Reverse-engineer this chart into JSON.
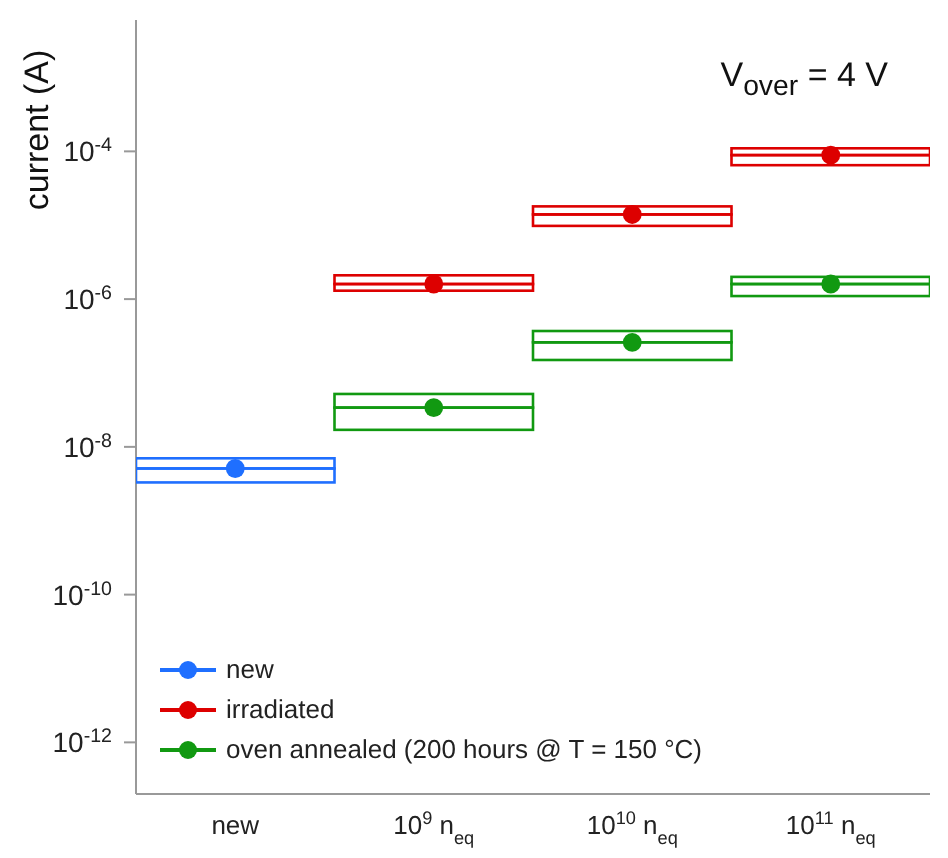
{
  "chart_data": {
    "type": "scatter",
    "ylabel": "current (A)",
    "annotations": [
      "V$_{over}$ = 4 V"
    ],
    "categories": [
      "new",
      "10$^{9}$ n$_{eq}$",
      "10$^{10}$ n$_{eq}$",
      "10$^{11}$ n$_{eq}$"
    ],
    "log": "y",
    "ylim": [
      2e-13,
      0.006
    ],
    "yticks": [
      {
        "value": 1e-12,
        "label": "10$^{-12}$"
      },
      {
        "value": 1e-10,
        "label": "10$^{-10}$"
      },
      {
        "value": 1e-08,
        "label": "10$^{-8}$"
      },
      {
        "value": 1e-06,
        "label": "10$^{-6}$"
      },
      {
        "value": 0.0001,
        "label": "10$^{-4}$"
      }
    ],
    "marker": "circle",
    "legend": "bottom left",
    "grid": false,
    "series": [
      {
        "type": "bar",
        "color": "#1f6fff",
        "base": [
          3.3e-09,
          null,
          null,
          null
        ],
        "values": [
          1.8e-09,
          null,
          null,
          null
        ]
      },
      {
        "type": "bar",
        "color": "#1f6fff",
        "base": [
          5.1e-09,
          null,
          null,
          null
        ],
        "values": [
          1.9e-09,
          null,
          null,
          null
        ]
      },
      {
        "type": "bar",
        "color": "#dd0000",
        "base": [
          null,
          1.3e-06,
          9.8e-06,
          6.5e-05
        ],
        "values": [
          null,
          3e-07,
          4.2e-06,
          2.4e-05
        ]
      },
      {
        "type": "bar",
        "color": "#dd0000",
        "base": [
          null,
          1.6e-06,
          1.4e-05,
          8.9e-05
        ],
        "values": [
          null,
          5e-07,
          4e-06,
          2.1e-05
        ]
      },
      {
        "type": "bar",
        "color": "#119911",
        "base": [
          null,
          1.7e-08,
          1.5e-07,
          1.1e-06
        ],
        "values": [
          null,
          1.7e-08,
          1.1e-07,
          5e-07
        ]
      },
      {
        "type": "bar",
        "color": "#119911",
        "base": [
          null,
          3.4e-08,
          2.6e-07,
          1.6e-06
        ],
        "values": [
          null,
          1.8e-08,
          1.1e-07,
          4e-07
        ]
      },
      {
        "name": "new",
        "color": "#1f6fff",
        "values": [
          5.1e-09,
          null,
          null,
          null
        ]
      },
      {
        "name": "irradiated",
        "color": "#dd0000",
        "values": [
          null,
          1.6e-06,
          1.4e-05,
          8.9e-05
        ]
      },
      {
        "name": "oven annealed (200 hours @ T = 150 °C)",
        "color": "#119911",
        "values": [
          null,
          3.4e-08,
          2.6e-07,
          1.6e-06
        ]
      }
    ]
  }
}
